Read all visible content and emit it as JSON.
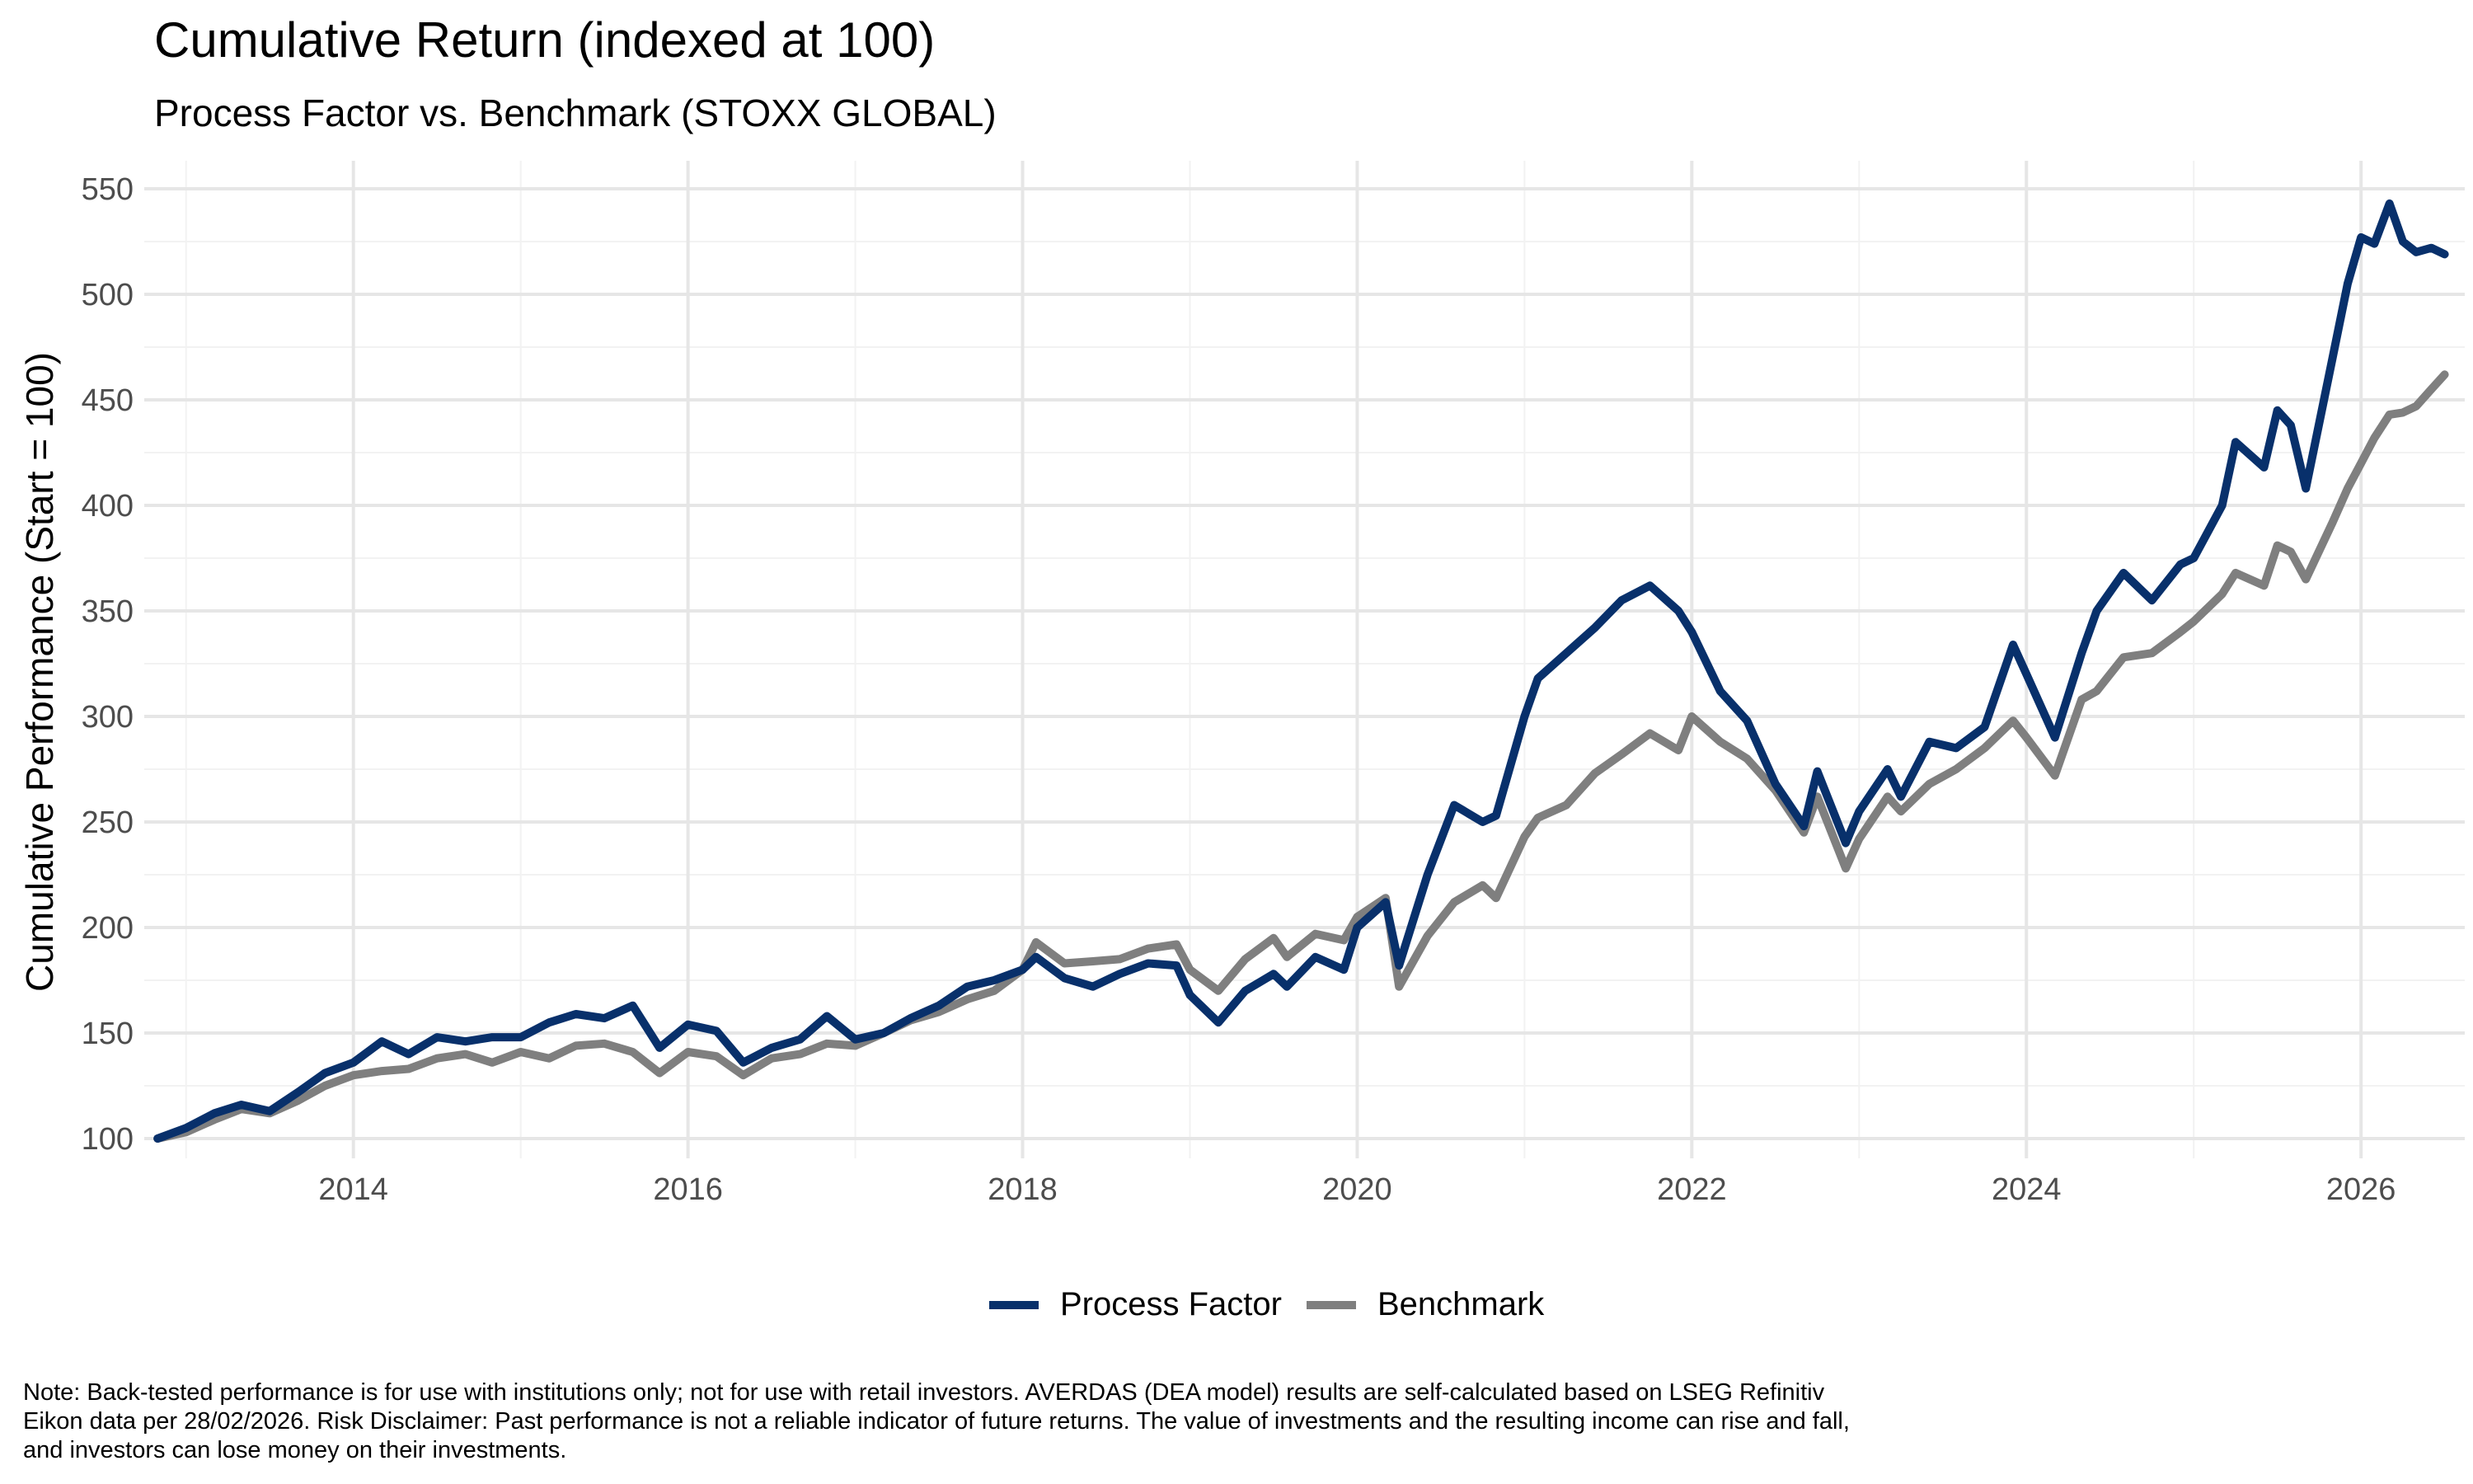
{
  "title": "Cumulative Return (indexed at 100)",
  "subtitle": "Process Factor vs. Benchmark (STOXX GLOBAL)",
  "footnote": "Note: Back-tested performance is for use with institutions only; not for use with retail investors. AVERDAS (DEA model) results are self-calculated based on LSEG Refinitiv Eikon data per 28/02/2026. Risk Disclaimer: Past performance is not a reliable indicator of future returns. The value of investments and the resulting income can rise and fall, and investors can lose money on their investments.",
  "legend_position": "bottom",
  "chart_data": {
    "type": "line",
    "title": "Cumulative Return (indexed at 100)",
    "subtitle": "Process Factor vs. Benchmark (STOXX GLOBAL)",
    "xlabel": "",
    "ylabel": "Cumulative Performance (Start = 100)",
    "xlim": [
      2012.75,
      2026.25
    ],
    "ylim": [
      100,
      555
    ],
    "x_ticks": [
      2014,
      2016,
      2018,
      2020,
      2022,
      2024,
      2026
    ],
    "y_ticks": [
      100,
      150,
      200,
      250,
      300,
      350,
      400,
      450,
      500,
      550
    ],
    "grid": true,
    "series": [
      {
        "name": "Process Factor",
        "color": "#08306b",
        "points": [
          [
            2012.83,
            100
          ],
          [
            2013.0,
            105
          ],
          [
            2013.17,
            112
          ],
          [
            2013.33,
            116
          ],
          [
            2013.5,
            113
          ],
          [
            2013.67,
            122
          ],
          [
            2013.83,
            131
          ],
          [
            2014.0,
            136
          ],
          [
            2014.17,
            146
          ],
          [
            2014.33,
            140
          ],
          [
            2014.5,
            148
          ],
          [
            2014.67,
            146
          ],
          [
            2014.83,
            148
          ],
          [
            2015.0,
            148
          ],
          [
            2015.17,
            155
          ],
          [
            2015.33,
            159
          ],
          [
            2015.5,
            157
          ],
          [
            2015.67,
            163
          ],
          [
            2015.83,
            143
          ],
          [
            2016.0,
            154
          ],
          [
            2016.17,
            151
          ],
          [
            2016.33,
            136
          ],
          [
            2016.5,
            143
          ],
          [
            2016.67,
            147
          ],
          [
            2016.83,
            158
          ],
          [
            2017.0,
            147
          ],
          [
            2017.17,
            150
          ],
          [
            2017.33,
            157
          ],
          [
            2017.5,
            163
          ],
          [
            2017.67,
            172
          ],
          [
            2017.83,
            175
          ],
          [
            2018.0,
            180
          ],
          [
            2018.08,
            186
          ],
          [
            2018.25,
            176
          ],
          [
            2018.42,
            172
          ],
          [
            2018.58,
            178
          ],
          [
            2018.75,
            183
          ],
          [
            2018.92,
            182
          ],
          [
            2019.0,
            168
          ],
          [
            2019.17,
            155
          ],
          [
            2019.33,
            170
          ],
          [
            2019.5,
            178
          ],
          [
            2019.58,
            172
          ],
          [
            2019.75,
            186
          ],
          [
            2019.92,
            180
          ],
          [
            2020.0,
            200
          ],
          [
            2020.17,
            212
          ],
          [
            2020.25,
            182
          ],
          [
            2020.42,
            225
          ],
          [
            2020.58,
            258
          ],
          [
            2020.75,
            250
          ],
          [
            2020.83,
            253
          ],
          [
            2021.0,
            300
          ],
          [
            2021.08,
            318
          ],
          [
            2021.25,
            330
          ],
          [
            2021.42,
            342
          ],
          [
            2021.58,
            355
          ],
          [
            2021.75,
            362
          ],
          [
            2021.92,
            350
          ],
          [
            2022.0,
            340
          ],
          [
            2022.17,
            312
          ],
          [
            2022.33,
            298
          ],
          [
            2022.5,
            268
          ],
          [
            2022.67,
            248
          ],
          [
            2022.75,
            274
          ],
          [
            2022.92,
            240
          ],
          [
            2023.0,
            255
          ],
          [
            2023.17,
            275
          ],
          [
            2023.25,
            262
          ],
          [
            2023.42,
            288
          ],
          [
            2023.58,
            285
          ],
          [
            2023.75,
            295
          ],
          [
            2023.92,
            334
          ],
          [
            2024.0,
            320
          ],
          [
            2024.17,
            290
          ],
          [
            2024.33,
            330
          ],
          [
            2024.42,
            350
          ],
          [
            2024.58,
            368
          ],
          [
            2024.75,
            355
          ],
          [
            2024.92,
            372
          ],
          [
            2025.0,
            375
          ],
          [
            2025.17,
            400
          ],
          [
            2025.25,
            430
          ],
          [
            2025.42,
            418
          ],
          [
            2025.5,
            445
          ],
          [
            2025.58,
            438
          ],
          [
            2025.67,
            408
          ],
          [
            2025.83,
            470
          ],
          [
            2025.92,
            505
          ],
          [
            2026.0,
            527
          ],
          [
            2026.08,
            524
          ],
          [
            2026.17,
            543
          ],
          [
            2026.25,
            525
          ],
          [
            2026.33,
            520
          ],
          [
            2026.42,
            522
          ],
          [
            2026.5,
            519
          ]
        ]
      },
      {
        "name": "Benchmark",
        "color": "#7f7f7f",
        "points": [
          [
            2012.83,
            100
          ],
          [
            2013.0,
            103
          ],
          [
            2013.17,
            109
          ],
          [
            2013.33,
            114
          ],
          [
            2013.5,
            112
          ],
          [
            2013.67,
            118
          ],
          [
            2013.83,
            125
          ],
          [
            2014.0,
            130
          ],
          [
            2014.17,
            132
          ],
          [
            2014.33,
            133
          ],
          [
            2014.5,
            138
          ],
          [
            2014.67,
            140
          ],
          [
            2014.83,
            136
          ],
          [
            2015.0,
            141
          ],
          [
            2015.17,
            138
          ],
          [
            2015.33,
            144
          ],
          [
            2015.5,
            145
          ],
          [
            2015.67,
            141
          ],
          [
            2015.83,
            131
          ],
          [
            2016.0,
            141
          ],
          [
            2016.17,
            139
          ],
          [
            2016.33,
            130
          ],
          [
            2016.5,
            138
          ],
          [
            2016.67,
            140
          ],
          [
            2016.83,
            145
          ],
          [
            2017.0,
            144
          ],
          [
            2017.17,
            150
          ],
          [
            2017.33,
            156
          ],
          [
            2017.5,
            160
          ],
          [
            2017.67,
            166
          ],
          [
            2017.83,
            170
          ],
          [
            2018.0,
            180
          ],
          [
            2018.08,
            193
          ],
          [
            2018.25,
            183
          ],
          [
            2018.42,
            184
          ],
          [
            2018.58,
            185
          ],
          [
            2018.75,
            190
          ],
          [
            2018.92,
            192
          ],
          [
            2019.0,
            180
          ],
          [
            2019.17,
            170
          ],
          [
            2019.33,
            185
          ],
          [
            2019.5,
            195
          ],
          [
            2019.58,
            186
          ],
          [
            2019.75,
            197
          ],
          [
            2019.92,
            194
          ],
          [
            2020.0,
            205
          ],
          [
            2020.17,
            214
          ],
          [
            2020.25,
            172
          ],
          [
            2020.42,
            196
          ],
          [
            2020.58,
            212
          ],
          [
            2020.75,
            220
          ],
          [
            2020.83,
            214
          ],
          [
            2021.0,
            243
          ],
          [
            2021.08,
            252
          ],
          [
            2021.25,
            258
          ],
          [
            2021.42,
            273
          ],
          [
            2021.58,
            282
          ],
          [
            2021.75,
            292
          ],
          [
            2021.92,
            284
          ],
          [
            2022.0,
            300
          ],
          [
            2022.17,
            288
          ],
          [
            2022.33,
            280
          ],
          [
            2022.5,
            265
          ],
          [
            2022.67,
            245
          ],
          [
            2022.75,
            262
          ],
          [
            2022.92,
            228
          ],
          [
            2023.0,
            242
          ],
          [
            2023.17,
            262
          ],
          [
            2023.25,
            255
          ],
          [
            2023.42,
            268
          ],
          [
            2023.58,
            275
          ],
          [
            2023.75,
            285
          ],
          [
            2023.92,
            298
          ],
          [
            2024.0,
            290
          ],
          [
            2024.17,
            272
          ],
          [
            2024.33,
            308
          ],
          [
            2024.42,
            312
          ],
          [
            2024.58,
            328
          ],
          [
            2024.75,
            330
          ],
          [
            2024.92,
            340
          ],
          [
            2025.0,
            345
          ],
          [
            2025.17,
            358
          ],
          [
            2025.25,
            368
          ],
          [
            2025.42,
            362
          ],
          [
            2025.5,
            381
          ],
          [
            2025.58,
            378
          ],
          [
            2025.67,
            365
          ],
          [
            2025.83,
            392
          ],
          [
            2025.92,
            408
          ],
          [
            2026.0,
            420
          ],
          [
            2026.08,
            432
          ],
          [
            2026.17,
            443
          ],
          [
            2026.25,
            444
          ],
          [
            2026.33,
            447
          ],
          [
            2026.42,
            455
          ],
          [
            2026.5,
            462
          ]
        ]
      }
    ]
  }
}
